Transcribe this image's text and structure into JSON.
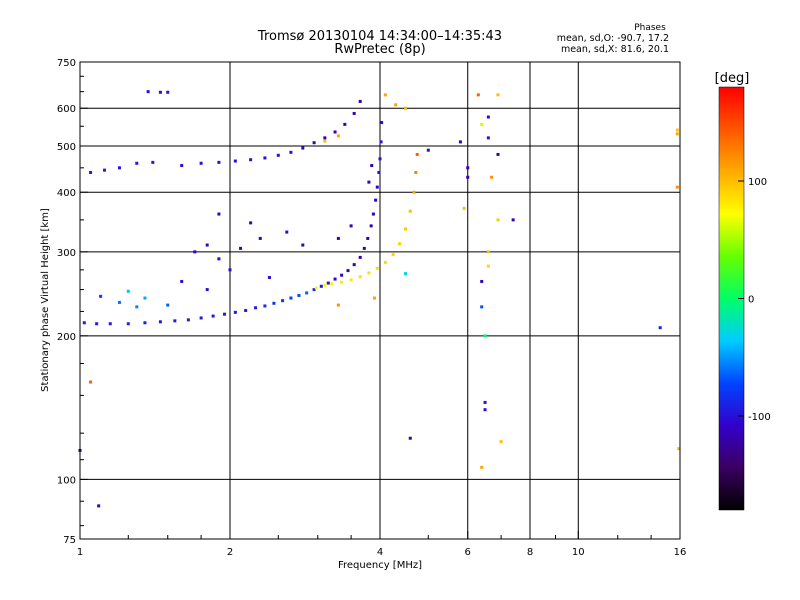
{
  "chart_data": {
    "type": "scatter",
    "title": "Tromsø 20130104 14:34:00–14:35:43",
    "subtitle": "RwPretec (8p)",
    "xlabel": "Frequency [MHz]",
    "ylabel": "Stationary phase Virtual Height [km]",
    "x_scale": "log",
    "y_scale": "log",
    "xlim": [
      1,
      16
    ],
    "ylim": [
      75,
      750
    ],
    "x_ticks": [
      {
        "value": 1,
        "label": "1"
      },
      {
        "value": 2,
        "label": "2"
      },
      {
        "value": 4,
        "label": "4"
      },
      {
        "value": 6,
        "label": "6"
      },
      {
        "value": 8,
        "label": "8"
      },
      {
        "value": 10,
        "label": "10"
      },
      {
        "value": 16,
        "label": "16"
      }
    ],
    "y_ticks": [
      {
        "value": 75,
        "label": "75"
      },
      {
        "value": 100,
        "label": "100"
      },
      {
        "value": 200,
        "label": "200"
      },
      {
        "value": 300,
        "label": "300"
      },
      {
        "value": 400,
        "label": "400"
      },
      {
        "value": 500,
        "label": "500"
      },
      {
        "value": 600,
        "label": "600"
      },
      {
        "value": 750,
        "label": "750"
      }
    ],
    "grid": true,
    "stats": {
      "heading": "Phases",
      "line_o": "mean, sd,O: -90.7, 17.2",
      "line_x": "mean, sd,X: 81.6, 20.1"
    },
    "colorbar": {
      "label": "[deg]",
      "range": [
        -180,
        180
      ],
      "ticks": [
        {
          "value": 100,
          "label": "100"
        },
        {
          "value": 0,
          "label": "0"
        },
        {
          "value": -100,
          "label": "-100"
        }
      ],
      "colormap": [
        "#000000",
        "#3a0060",
        "#3300cc",
        "#0044ff",
        "#00ccff",
        "#00ff66",
        "#66ff00",
        "#ffff00",
        "#ffaa00",
        "#ff5500",
        "#ff0000"
      ]
    },
    "points": [
      {
        "x": 1.02,
        "y": 213,
        "phase": -95
      },
      {
        "x": 1.08,
        "y": 212,
        "phase": -95
      },
      {
        "x": 1.15,
        "y": 212,
        "phase": -92
      },
      {
        "x": 1.25,
        "y": 212,
        "phase": -90
      },
      {
        "x": 1.35,
        "y": 213,
        "phase": -92
      },
      {
        "x": 1.45,
        "y": 214,
        "phase": -95
      },
      {
        "x": 1.55,
        "y": 215,
        "phase": -95
      },
      {
        "x": 1.65,
        "y": 216,
        "phase": -95
      },
      {
        "x": 1.75,
        "y": 218,
        "phase": -95
      },
      {
        "x": 1.85,
        "y": 220,
        "phase": -95
      },
      {
        "x": 1.95,
        "y": 222,
        "phase": -95
      },
      {
        "x": 2.05,
        "y": 224,
        "phase": -95
      },
      {
        "x": 2.15,
        "y": 226,
        "phase": -92
      },
      {
        "x": 2.25,
        "y": 229,
        "phase": -90
      },
      {
        "x": 2.35,
        "y": 231,
        "phase": -85
      },
      {
        "x": 2.45,
        "y": 234,
        "phase": -80
      },
      {
        "x": 2.55,
        "y": 237,
        "phase": -78
      },
      {
        "x": 2.65,
        "y": 240,
        "phase": -75
      },
      {
        "x": 2.75,
        "y": 243,
        "phase": -70
      },
      {
        "x": 2.85,
        "y": 246,
        "phase": -65
      },
      {
        "x": 2.95,
        "y": 250,
        "phase": -90
      },
      {
        "x": 3.05,
        "y": 254,
        "phase": -95
      },
      {
        "x": 3.15,
        "y": 258,
        "phase": -100
      },
      {
        "x": 3.25,
        "y": 263,
        "phase": -105
      },
      {
        "x": 3.35,
        "y": 268,
        "phase": -110
      },
      {
        "x": 3.45,
        "y": 274,
        "phase": -115
      },
      {
        "x": 3.55,
        "y": 282,
        "phase": -118
      },
      {
        "x": 3.65,
        "y": 292,
        "phase": -120
      },
      {
        "x": 3.72,
        "y": 305,
        "phase": -120
      },
      {
        "x": 3.78,
        "y": 320,
        "phase": -118
      },
      {
        "x": 3.84,
        "y": 340,
        "phase": -115
      },
      {
        "x": 3.88,
        "y": 360,
        "phase": -112
      },
      {
        "x": 3.92,
        "y": 385,
        "phase": -110
      },
      {
        "x": 3.95,
        "y": 410,
        "phase": -108
      },
      {
        "x": 3.98,
        "y": 440,
        "phase": -105
      },
      {
        "x": 4.0,
        "y": 470,
        "phase": -100
      },
      {
        "x": 4.02,
        "y": 510,
        "phase": -100
      },
      {
        "x": 4.03,
        "y": 560,
        "phase": -100
      },
      {
        "x": 2.98,
        "y": 252,
        "phase": 70
      },
      {
        "x": 3.1,
        "y": 255,
        "phase": 75
      },
      {
        "x": 3.2,
        "y": 257,
        "phase": 78
      },
      {
        "x": 3.35,
        "y": 259,
        "phase": 80
      },
      {
        "x": 3.5,
        "y": 262,
        "phase": 82
      },
      {
        "x": 3.65,
        "y": 266,
        "phase": 85
      },
      {
        "x": 3.8,
        "y": 271,
        "phase": 85
      },
      {
        "x": 3.95,
        "y": 277,
        "phase": 88
      },
      {
        "x": 4.1,
        "y": 285,
        "phase": 88
      },
      {
        "x": 4.25,
        "y": 296,
        "phase": 90
      },
      {
        "x": 4.38,
        "y": 312,
        "phase": 92
      },
      {
        "x": 4.5,
        "y": 335,
        "phase": 95
      },
      {
        "x": 4.6,
        "y": 365,
        "phase": 100
      },
      {
        "x": 4.68,
        "y": 400,
        "phase": 110
      },
      {
        "x": 4.72,
        "y": 440,
        "phase": 125
      },
      {
        "x": 4.75,
        "y": 480,
        "phase": 140
      },
      {
        "x": 1.05,
        "y": 440,
        "phase": -95
      },
      {
        "x": 1.12,
        "y": 445,
        "phase": -95
      },
      {
        "x": 1.2,
        "y": 450,
        "phase": -100
      },
      {
        "x": 1.3,
        "y": 460,
        "phase": -95
      },
      {
        "x": 1.4,
        "y": 462,
        "phase": -95
      },
      {
        "x": 1.6,
        "y": 455,
        "phase": -100
      },
      {
        "x": 1.75,
        "y": 460,
        "phase": -100
      },
      {
        "x": 1.9,
        "y": 462,
        "phase": -100
      },
      {
        "x": 2.05,
        "y": 465,
        "phase": -100
      },
      {
        "x": 2.2,
        "y": 468,
        "phase": -100
      },
      {
        "x": 2.35,
        "y": 472,
        "phase": -100
      },
      {
        "x": 2.5,
        "y": 478,
        "phase": -100
      },
      {
        "x": 2.65,
        "y": 485,
        "phase": -100
      },
      {
        "x": 2.8,
        "y": 495,
        "phase": -105
      },
      {
        "x": 2.95,
        "y": 508,
        "phase": -110
      },
      {
        "x": 3.1,
        "y": 520,
        "phase": -115
      },
      {
        "x": 3.25,
        "y": 535,
        "phase": -115
      },
      {
        "x": 3.4,
        "y": 555,
        "phase": -115
      },
      {
        "x": 3.55,
        "y": 585,
        "phase": -115
      },
      {
        "x": 3.65,
        "y": 620,
        "phase": -120
      },
      {
        "x": 3.1,
        "y": 512,
        "phase": 100
      },
      {
        "x": 3.3,
        "y": 525,
        "phase": 110
      },
      {
        "x": 1.37,
        "y": 650,
        "phase": -100
      },
      {
        "x": 1.45,
        "y": 648,
        "phase": -100
      },
      {
        "x": 1.5,
        "y": 648,
        "phase": -100
      },
      {
        "x": 1.7,
        "y": 300,
        "phase": -110
      },
      {
        "x": 1.8,
        "y": 310,
        "phase": -110
      },
      {
        "x": 1.9,
        "y": 290,
        "phase": -108
      },
      {
        "x": 2.1,
        "y": 305,
        "phase": -110
      },
      {
        "x": 2.3,
        "y": 320,
        "phase": -110
      },
      {
        "x": 2.6,
        "y": 330,
        "phase": -105
      },
      {
        "x": 1.9,
        "y": 360,
        "phase": -115
      },
      {
        "x": 2.2,
        "y": 345,
        "phase": -115
      },
      {
        "x": 1.6,
        "y": 260,
        "phase": -100
      },
      {
        "x": 1.8,
        "y": 250,
        "phase": -100
      },
      {
        "x": 2.0,
        "y": 275,
        "phase": -100
      },
      {
        "x": 2.4,
        "y": 265,
        "phase": -100
      },
      {
        "x": 1.2,
        "y": 235,
        "phase": -60
      },
      {
        "x": 1.35,
        "y": 240,
        "phase": -45
      },
      {
        "x": 1.5,
        "y": 232,
        "phase": -65
      },
      {
        "x": 1.3,
        "y": 230,
        "phase": -55
      },
      {
        "x": 1.25,
        "y": 248,
        "phase": -40
      },
      {
        "x": 1.1,
        "y": 242,
        "phase": -75
      },
      {
        "x": 2.8,
        "y": 310,
        "phase": -110
      },
      {
        "x": 3.3,
        "y": 320,
        "phase": -112
      },
      {
        "x": 3.5,
        "y": 340,
        "phase": -115
      },
      {
        "x": 3.8,
        "y": 420,
        "phase": -115
      },
      {
        "x": 3.85,
        "y": 455,
        "phase": -120
      },
      {
        "x": 3.9,
        "y": 240,
        "phase": 110
      },
      {
        "x": 3.3,
        "y": 232,
        "phase": 120
      },
      {
        "x": 4.3,
        "y": 610,
        "phase": 110
      },
      {
        "x": 4.5,
        "y": 600,
        "phase": 105
      },
      {
        "x": 4.1,
        "y": 640,
        "phase": 110
      },
      {
        "x": 6.0,
        "y": 430,
        "phase": -120
      },
      {
        "x": 6.0,
        "y": 450,
        "phase": -120
      },
      {
        "x": 6.4,
        "y": 555,
        "phase": 60
      },
      {
        "x": 6.6,
        "y": 520,
        "phase": -100
      },
      {
        "x": 6.9,
        "y": 480,
        "phase": -120
      },
      {
        "x": 6.6,
        "y": 300,
        "phase": 100
      },
      {
        "x": 6.6,
        "y": 280,
        "phase": 90
      },
      {
        "x": 6.9,
        "y": 350,
        "phase": 95
      },
      {
        "x": 6.5,
        "y": 145,
        "phase": -100
      },
      {
        "x": 6.5,
        "y": 140,
        "phase": -100
      },
      {
        "x": 6.5,
        "y": 200,
        "phase": 0
      },
      {
        "x": 6.4,
        "y": 106,
        "phase": 110
      },
      {
        "x": 7.4,
        "y": 350,
        "phase": -120
      },
      {
        "x": 6.3,
        "y": 640,
        "phase": 140
      },
      {
        "x": 6.9,
        "y": 640,
        "phase": 100
      },
      {
        "x": 6.6,
        "y": 575,
        "phase": -100
      },
      {
        "x": 6.7,
        "y": 430,
        "phase": 120
      },
      {
        "x": 6.4,
        "y": 260,
        "phase": -110
      },
      {
        "x": 6.4,
        "y": 230,
        "phase": -70
      },
      {
        "x": 5.9,
        "y": 370,
        "phase": 100
      },
      {
        "x": 5.8,
        "y": 510,
        "phase": -110
      },
      {
        "x": 5.0,
        "y": 490,
        "phase": -100
      },
      {
        "x": 4.5,
        "y": 270,
        "phase": -30
      },
      {
        "x": 4.6,
        "y": 122,
        "phase": -115
      },
      {
        "x": 1.05,
        "y": 160,
        "phase": 140
      },
      {
        "x": 1.0,
        "y": 115,
        "phase": -110
      },
      {
        "x": 1.09,
        "y": 88,
        "phase": -110
      },
      {
        "x": 15.8,
        "y": 410,
        "phase": 120
      },
      {
        "x": 15.8,
        "y": 530,
        "phase": 110
      },
      {
        "x": 15.8,
        "y": 540,
        "phase": 100
      },
      {
        "x": 14.6,
        "y": 208,
        "phase": -90
      },
      {
        "x": 15.9,
        "y": 116,
        "phase": 100
      },
      {
        "x": 7.0,
        "y": 120,
        "phase": 100
      }
    ]
  }
}
